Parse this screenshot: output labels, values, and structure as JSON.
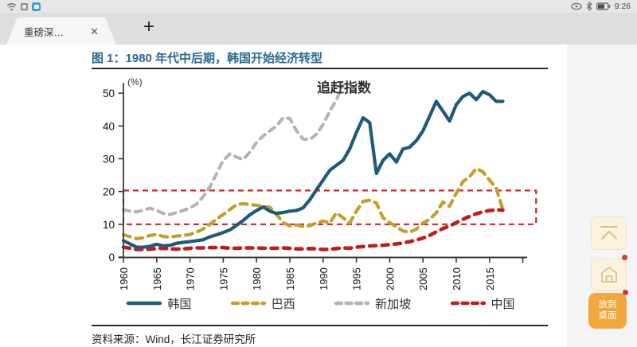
{
  "status_bar": {
    "time": "9:26"
  },
  "tab_bar": {
    "active_tab_title": "重磅深…",
    "close_glyph": "✕",
    "new_tab_glyph": "+"
  },
  "figure": {
    "title": "图 1：1980 年代中后期，韩国开始经济转型",
    "source": "资料来源：Wind，长江证券研究所"
  },
  "side_panel": {
    "to_desktop_label": "放到桌面"
  },
  "chart_data": {
    "type": "line",
    "annotation": "追赶指数",
    "unit_label": "(%)",
    "xlabel": "",
    "ylabel": "",
    "ylim": [
      0,
      52
    ],
    "yticks": [
      0,
      10,
      20,
      30,
      40,
      50
    ],
    "xticks": [
      1960,
      1965,
      1970,
      1975,
      1980,
      1985,
      1990,
      1995,
      2000,
      2005,
      2010,
      2015
    ],
    "axis_end_year": 2020,
    "grid": false,
    "legend_position": "bottom",
    "highlight_box": {
      "x0": 1960,
      "x1": 2022,
      "y0": 10,
      "y1": 20.3,
      "color": "#d42127"
    },
    "series": [
      {
        "name": "韩国",
        "color": "#20597a",
        "dash": "solid",
        "width": 4.2,
        "start_year": 1960,
        "values": [
          5,
          4,
          3,
          3,
          3.3,
          3.9,
          3.4,
          3.6,
          4.2,
          4.5,
          4.7,
          5,
          5.3,
          6.2,
          6.8,
          7.5,
          8.3,
          9.7,
          11.2,
          12.9,
          14.2,
          15.3,
          14,
          13.3,
          13.6,
          14,
          14.2,
          15,
          17.5,
          20.5,
          23.5,
          26.5,
          28,
          29.5,
          33,
          38,
          42.5,
          41,
          25.5,
          29.5,
          31.5,
          29,
          33,
          33.5,
          35.5,
          38.5,
          43,
          47.5,
          44.5,
          41.5,
          46.5,
          49,
          50,
          48,
          50.5,
          49.5,
          47.5,
          47.5
        ]
      },
      {
        "name": "巴西",
        "color": "#c3a02b",
        "dash": "9 7",
        "width": 4.2,
        "start_year": 1960,
        "values": [
          6.8,
          6.2,
          5.6,
          5.9,
          6.6,
          6.9,
          6.3,
          6.1,
          6.4,
          6.6,
          6.9,
          7.6,
          8.6,
          10,
          11.6,
          13,
          14.5,
          16,
          16.3,
          16,
          15.8,
          15.5,
          15.2,
          13,
          10.5,
          9.5,
          9.8,
          9.3,
          9.6,
          10.4,
          11,
          10.4,
          13.5,
          12,
          10.4,
          14,
          17,
          17.3,
          16.5,
          12,
          10.5,
          9.2,
          8,
          7.6,
          8.5,
          10.4,
          11.5,
          13.5,
          16.8,
          15.5,
          19.5,
          23,
          24.5,
          27,
          26,
          23.5,
          21,
          14.5
        ]
      },
      {
        "name": "新加坡",
        "color": "#b3b3b3",
        "dash": "8 7",
        "width": 4,
        "start_year": 1960,
        "values": [
          14.5,
          14,
          13.8,
          14.3,
          14.9,
          14.2,
          13.3,
          13,
          13.6,
          14.2,
          15,
          16.2,
          18.5,
          21.5,
          25.5,
          29.5,
          31.5,
          30.5,
          29.8,
          32,
          35,
          37,
          38.5,
          40,
          42.5,
          42.3,
          38.5,
          36,
          35.8,
          37.5,
          40.5,
          44.5,
          48,
          52.5
        ]
      },
      {
        "name": "中国",
        "color": "#bd1f21",
        "dash": "8 7.5",
        "width": 4.6,
        "start_year": 1960,
        "values": [
          3,
          2.7,
          2.3,
          2.3,
          2.4,
          2.6,
          2.7,
          2.5,
          2.4,
          2.5,
          2.7,
          2.8,
          2.8,
          2.9,
          2.9,
          2.9,
          2.7,
          2.7,
          2.8,
          2.8,
          2.8,
          2.7,
          2.7,
          2.7,
          2.8,
          2.7,
          2.5,
          2.5,
          2.6,
          2.5,
          2.3,
          2.4,
          2.6,
          2.8,
          2.7,
          3,
          3.2,
          3.4,
          3.5,
          3.6,
          3.8,
          4,
          4.3,
          4.7,
          5.2,
          5.8,
          6.6,
          7.7,
          8.7,
          9.5,
          10.5,
          11.5,
          12.4,
          13.2,
          13.8,
          14.2,
          14.4,
          14.3
        ]
      }
    ]
  }
}
